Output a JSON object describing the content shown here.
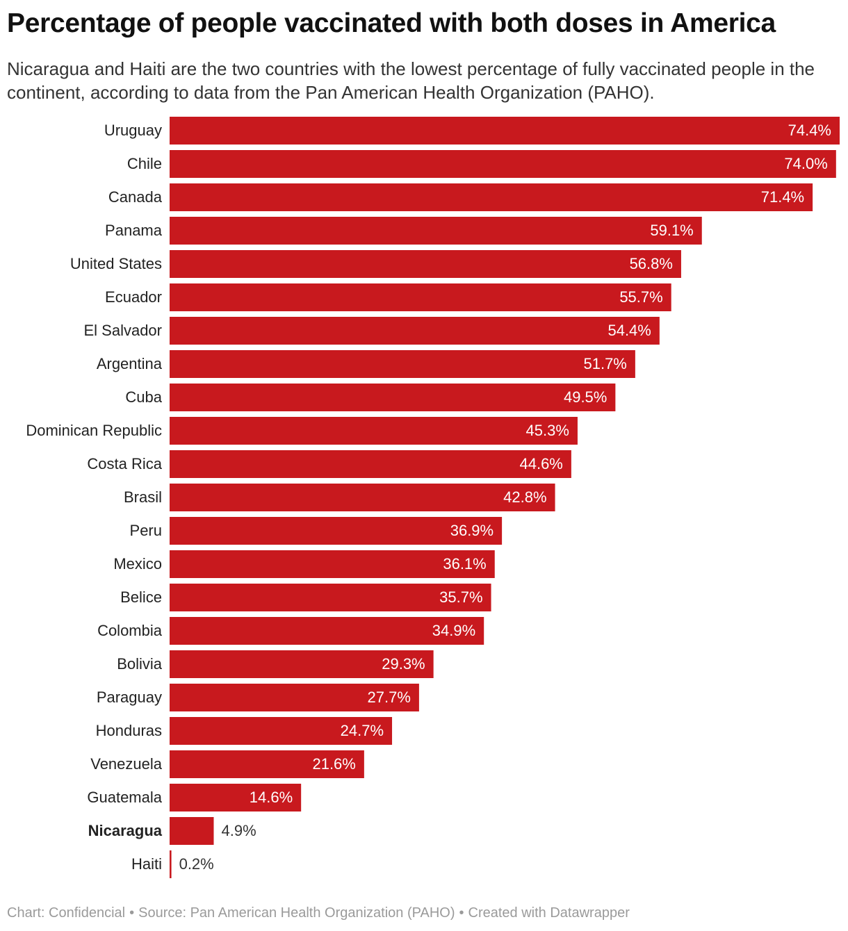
{
  "title": "Percentage of people vaccinated with both doses in America",
  "subtitle": "Nicaragua and Haiti are the two countries with the lowest percentage of fully vaccinated people in the continent, according to data from the Pan American Health Organization (PAHO).",
  "footer": {
    "chart_credit": "Chart: Confidencial",
    "source": "Source: Pan American Health Organization (PAHO)",
    "created_with": "Created with Datawrapper",
    "separator": "•"
  },
  "colors": {
    "bar": "#c8191e",
    "label_inside": "#ffffff",
    "label_outside": "#333333",
    "category_text": "#222222"
  },
  "chart_data": {
    "type": "bar",
    "orientation": "horizontal",
    "highlighted_category": "Nicaragua",
    "value_suffix": "%",
    "xlim": [
      0,
      74.4
    ],
    "grid": false,
    "categories": [
      "Uruguay",
      "Chile",
      "Canada",
      "Panama",
      "United States",
      "Ecuador",
      "El Salvador",
      "Argentina",
      "Cuba",
      "Dominican Republic",
      "Costa Rica",
      "Brasil",
      "Peru",
      "Mexico",
      "Belice",
      "Colombia",
      "Bolivia",
      "Paraguay",
      "Honduras",
      "Venezuela",
      "Guatemala",
      "Nicaragua",
      "Haiti"
    ],
    "values": [
      74.4,
      74.0,
      71.4,
      59.1,
      56.8,
      55.7,
      54.4,
      51.7,
      49.5,
      45.3,
      44.6,
      42.8,
      36.9,
      36.1,
      35.7,
      34.9,
      29.3,
      27.7,
      24.7,
      21.6,
      14.6,
      4.9,
      0.2
    ],
    "labels": [
      "74.4%",
      "74.0%",
      "71.4%",
      "59.1%",
      "56.8%",
      "55.7%",
      "54.4%",
      "51.7%",
      "49.5%",
      "45.3%",
      "44.6%",
      "42.8%",
      "36.9%",
      "36.1%",
      "35.7%",
      "34.9%",
      "29.3%",
      "27.7%",
      "24.7%",
      "21.6%",
      "14.6%",
      "4.9%",
      "0.2%"
    ]
  }
}
